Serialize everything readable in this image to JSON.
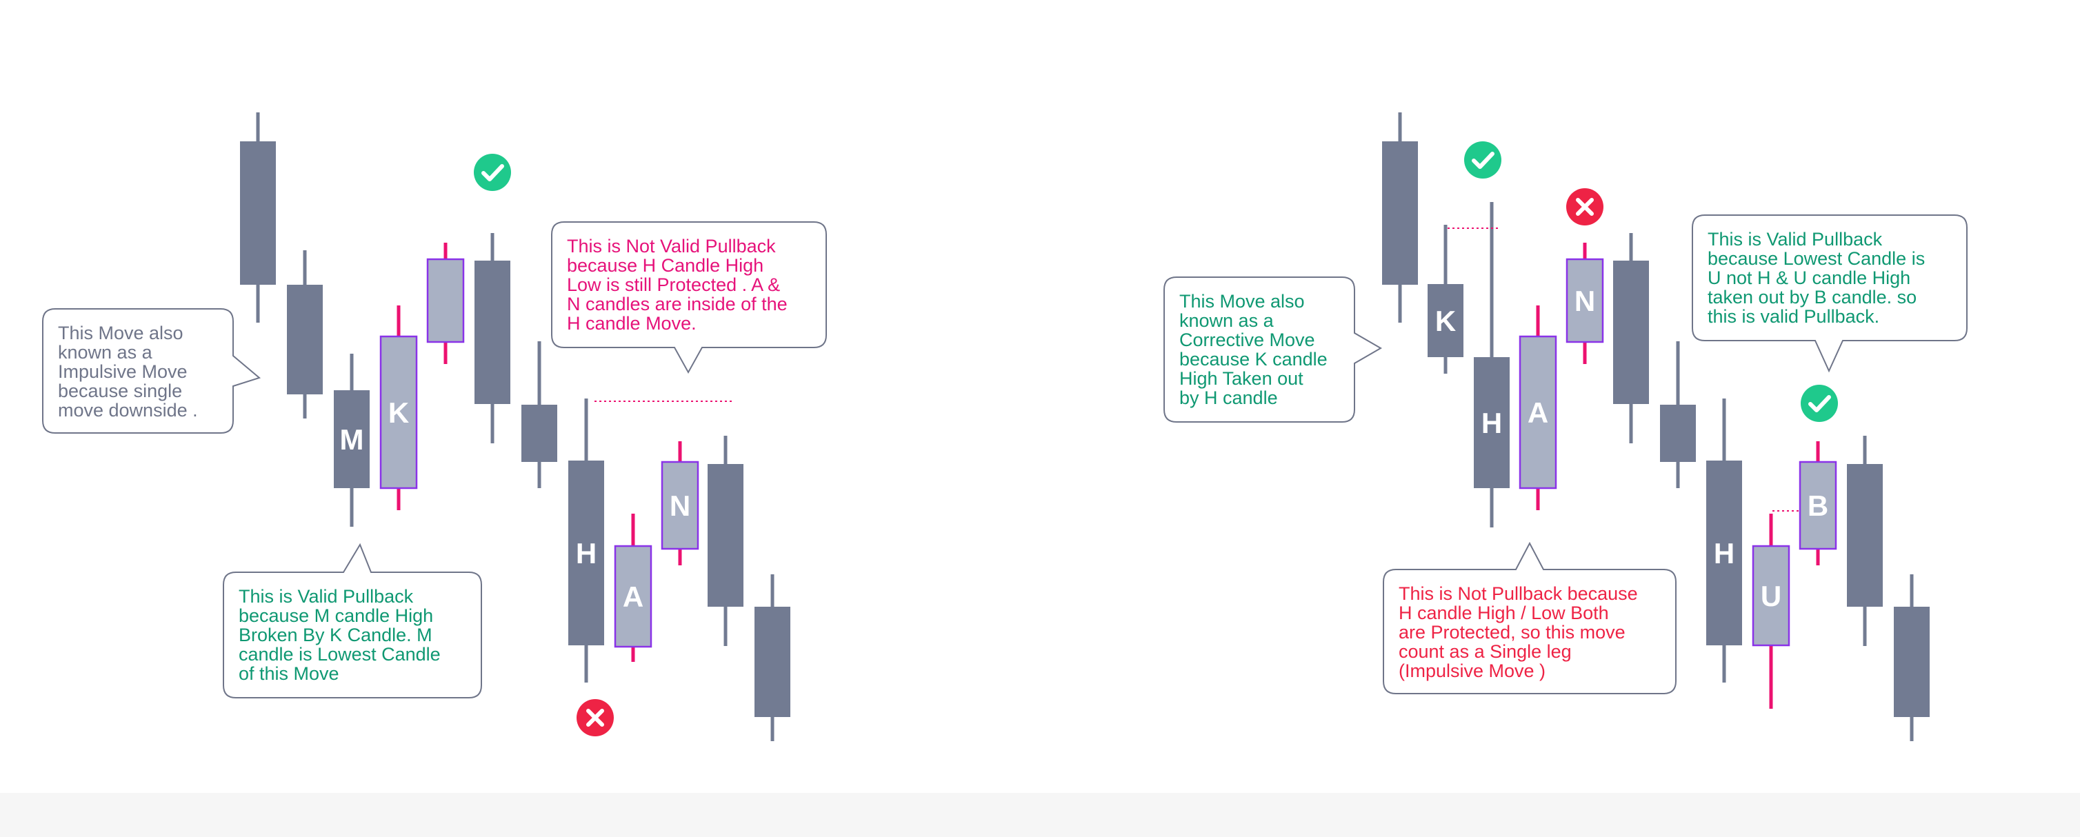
{
  "colors": {
    "bear_candle": "#727b92",
    "pullback_candle": "#a9b1c4",
    "pullback_border": "#8a33e8",
    "pullback_wick": "#ec1170",
    "check_badge": "#1fc98c",
    "cross_badge": "#ee2345",
    "text_green": "#0f9872",
    "text_pink": "#e6127a",
    "text_red": "#ee2345",
    "text_gray": "#6f7589",
    "callout_border": "#6f7589"
  },
  "icons": {
    "check": "check-circle-icon",
    "cross": "cross-circle-icon"
  },
  "left_diagram": {
    "candles": [
      {
        "id": "c1",
        "type": "bear",
        "label": ""
      },
      {
        "id": "c2",
        "type": "bear",
        "label": ""
      },
      {
        "id": "c3",
        "type": "bear",
        "label": "M"
      },
      {
        "id": "c4",
        "type": "pullback",
        "label": "K"
      },
      {
        "id": "c5",
        "type": "pullback",
        "label": ""
      },
      {
        "id": "c6",
        "type": "bear",
        "label": ""
      },
      {
        "id": "c7",
        "type": "bear",
        "label": ""
      },
      {
        "id": "c8",
        "type": "bear",
        "label": "H"
      },
      {
        "id": "c9",
        "type": "pullback",
        "label": "A"
      },
      {
        "id": "c10",
        "type": "pullback",
        "label": "N"
      },
      {
        "id": "c11",
        "type": "bear",
        "label": ""
      },
      {
        "id": "c12",
        "type": "bear",
        "label": ""
      }
    ],
    "callouts": {
      "impulsive": [
        "This Move also",
        "known as a",
        "Impulsive Move",
        "because single",
        "move downside ."
      ],
      "valid_mk": [
        "This is Valid Pullback",
        "because M candle High",
        "Broken By K Candle.  M",
        "candle is Lowest Candle",
        "of this Move"
      ],
      "not_valid_ha": [
        "This is Not Valid Pullback",
        "because H Candle High",
        "Low is still Protected . A &",
        "N candles are inside of the",
        "H candle Move."
      ]
    }
  },
  "right_diagram": {
    "candles": [
      {
        "id": "r1",
        "type": "bear",
        "label": ""
      },
      {
        "id": "r2",
        "type": "bear",
        "label": "K"
      },
      {
        "id": "r3",
        "type": "bear",
        "label": "H"
      },
      {
        "id": "r4",
        "type": "pullback",
        "label": "A"
      },
      {
        "id": "r5",
        "type": "pullback",
        "label": "N"
      },
      {
        "id": "r6",
        "type": "bear",
        "label": ""
      },
      {
        "id": "r7",
        "type": "bear",
        "label": ""
      },
      {
        "id": "r8",
        "type": "bear",
        "label": "H"
      },
      {
        "id": "r9",
        "type": "pullback",
        "label": "U"
      },
      {
        "id": "r10",
        "type": "pullback",
        "label": "B"
      },
      {
        "id": "r11",
        "type": "bear",
        "label": ""
      },
      {
        "id": "r12",
        "type": "bear",
        "label": ""
      }
    ],
    "callouts": {
      "corrective": [
        "This Move also",
        "known as a",
        "Corrective Move",
        "because K candle",
        "High Taken out",
        "by H candle"
      ],
      "not_pullback_ha": [
        "This is Not Pullback because",
        "H  candle High / Low Both",
        "are Protected, so this move",
        "count as a Single leg",
        "(Impulsive Move )"
      ],
      "valid_ub": [
        "This is Valid Pullback",
        "because Lowest Candle is",
        "U not H  &  U candle High",
        "taken out by B candle. so",
        "this is valid Pullback."
      ]
    }
  }
}
